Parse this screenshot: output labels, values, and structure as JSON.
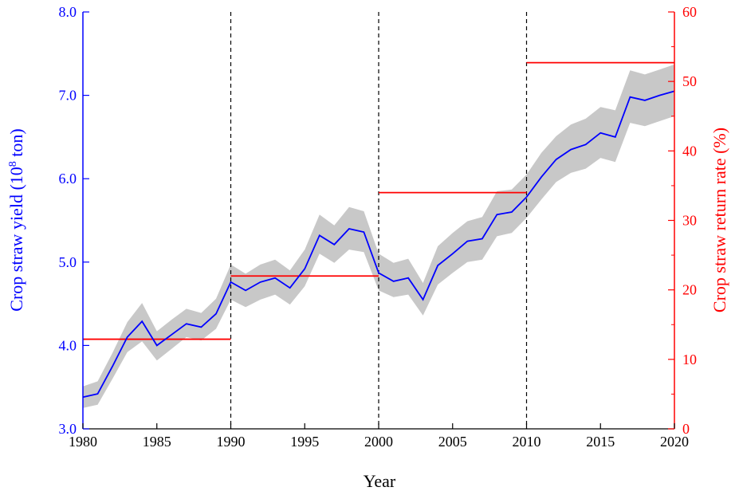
{
  "chart_data": {
    "type": "line",
    "xlabel": "Year",
    "ylabel_left": "Crop straw yield (10",
    "ylabel_left_sup": "8",
    "ylabel_left_unit": " ton)",
    "ylabel_right": "Crop straw return rate (%)",
    "xlim": [
      1980,
      2020
    ],
    "ylim_left": [
      3.0,
      8.0
    ],
    "ylim_right": [
      0,
      60
    ],
    "x_ticks": [
      "1980",
      "1985",
      "1990",
      "1995",
      "2000",
      "2005",
      "2010",
      "2015",
      "2020"
    ],
    "y_left_ticks": [
      "3.0",
      "4.0",
      "5.0",
      "6.0",
      "7.0",
      "8.0"
    ],
    "y_right_ticks": [
      "0",
      "10",
      "20",
      "30",
      "40",
      "50",
      "60"
    ],
    "vlines": [
      1990,
      2000,
      2010
    ],
    "colors": {
      "yield_line": "#0000ff",
      "band": "#c8c8c8",
      "return_rate": "#ff0000",
      "vline": "#000000"
    },
    "series": [
      {
        "axis": "left",
        "x": [
          1980,
          1981,
          1982,
          1983,
          1984,
          1985,
          1986,
          1987,
          1988,
          1989,
          1990,
          1991,
          1992,
          1993,
          1994,
          1995,
          1996,
          1997,
          1998,
          1999,
          2000,
          2001,
          2002,
          2003,
          2004,
          2005,
          2006,
          2007,
          2008,
          2009,
          2010,
          2011,
          2012,
          2013,
          2014,
          2015,
          2016,
          2017,
          2018,
          2019,
          2020
        ],
        "y": [
          3.38,
          3.42,
          3.75,
          4.1,
          4.29,
          4.0,
          4.13,
          4.26,
          4.22,
          4.38,
          4.76,
          4.66,
          4.76,
          4.81,
          4.69,
          4.92,
          5.32,
          5.21,
          5.4,
          5.36,
          4.87,
          4.77,
          4.81,
          4.55,
          4.96,
          5.1,
          5.25,
          5.28,
          5.57,
          5.6,
          5.78,
          6.02,
          6.23,
          6.35,
          6.41,
          6.55,
          6.5,
          6.98,
          6.94,
          7.0,
          7.05
        ],
        "lower": [
          3.25,
          3.29,
          3.6,
          3.92,
          4.05,
          3.82,
          3.96,
          4.1,
          4.06,
          4.2,
          4.55,
          4.46,
          4.55,
          4.61,
          4.49,
          4.71,
          5.1,
          4.99,
          5.15,
          5.12,
          4.66,
          4.58,
          4.61,
          4.36,
          4.73,
          4.87,
          5.0,
          5.03,
          5.31,
          5.35,
          5.53,
          5.75,
          5.96,
          6.07,
          6.12,
          6.25,
          6.2,
          6.67,
          6.63,
          6.69,
          6.75
        ],
        "upper": [
          3.51,
          3.57,
          3.91,
          4.28,
          4.51,
          4.17,
          4.31,
          4.44,
          4.39,
          4.56,
          4.97,
          4.86,
          4.97,
          5.03,
          4.9,
          5.15,
          5.57,
          5.44,
          5.66,
          5.61,
          5.1,
          4.99,
          5.04,
          4.75,
          5.19,
          5.35,
          5.49,
          5.54,
          5.85,
          5.87,
          6.05,
          6.31,
          6.51,
          6.65,
          6.72,
          6.86,
          6.82,
          7.3,
          7.25,
          7.31,
          7.37
        ]
      },
      {
        "axis": "right",
        "type": "step",
        "segments": [
          {
            "x0": 1980,
            "x1": 1990,
            "y": 12.9
          },
          {
            "x0": 1990,
            "x1": 2000,
            "y": 22.0
          },
          {
            "x0": 2000,
            "x1": 2010,
            "y": 34.0
          },
          {
            "x0": 2010,
            "x1": 2020,
            "y": 52.7
          }
        ]
      }
    ]
  }
}
